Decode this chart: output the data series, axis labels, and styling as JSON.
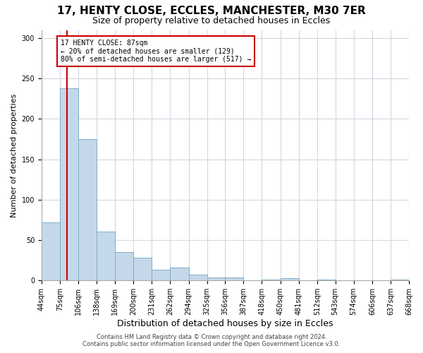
{
  "title1": "17, HENTY CLOSE, ECCLES, MANCHESTER, M30 7ER",
  "title2": "Size of property relative to detached houses in Eccles",
  "xlabel": "Distribution of detached houses by size in Eccles",
  "ylabel": "Number of detached properties",
  "bin_edges": [
    44,
    75,
    106,
    138,
    169,
    200,
    231,
    262,
    294,
    325,
    356,
    387,
    418,
    450,
    481,
    512,
    543,
    574,
    606,
    637,
    668
  ],
  "bar_heights": [
    72,
    238,
    175,
    61,
    35,
    28,
    13,
    16,
    7,
    4,
    4,
    0,
    1,
    3,
    0,
    1,
    0,
    0,
    0,
    1
  ],
  "bar_color": "#c5d8ea",
  "bar_edgecolor": "#7faec8",
  "property_size": 87,
  "vline_color": "#cc0000",
  "annotation_title": "17 HENTY CLOSE: 87sqm",
  "annotation_line1": "← 20% of detached houses are smaller (129)",
  "annotation_line2": "80% of semi-detached houses are larger (517) →",
  "annotation_box_color": "#cc0000",
  "ylim": [
    0,
    310
  ],
  "yticks": [
    0,
    50,
    100,
    150,
    200,
    250,
    300
  ],
  "footer1": "Contains HM Land Registry data © Crown copyright and database right 2024.",
  "footer2": "Contains public sector information licensed under the Open Government Licence v3.0.",
  "background_color": "#ffffff",
  "grid_color": "#d0d8e0",
  "title1_fontsize": 11,
  "title2_fontsize": 9,
  "xlabel_fontsize": 9,
  "ylabel_fontsize": 8,
  "tick_fontsize": 7,
  "footer_fontsize": 6
}
